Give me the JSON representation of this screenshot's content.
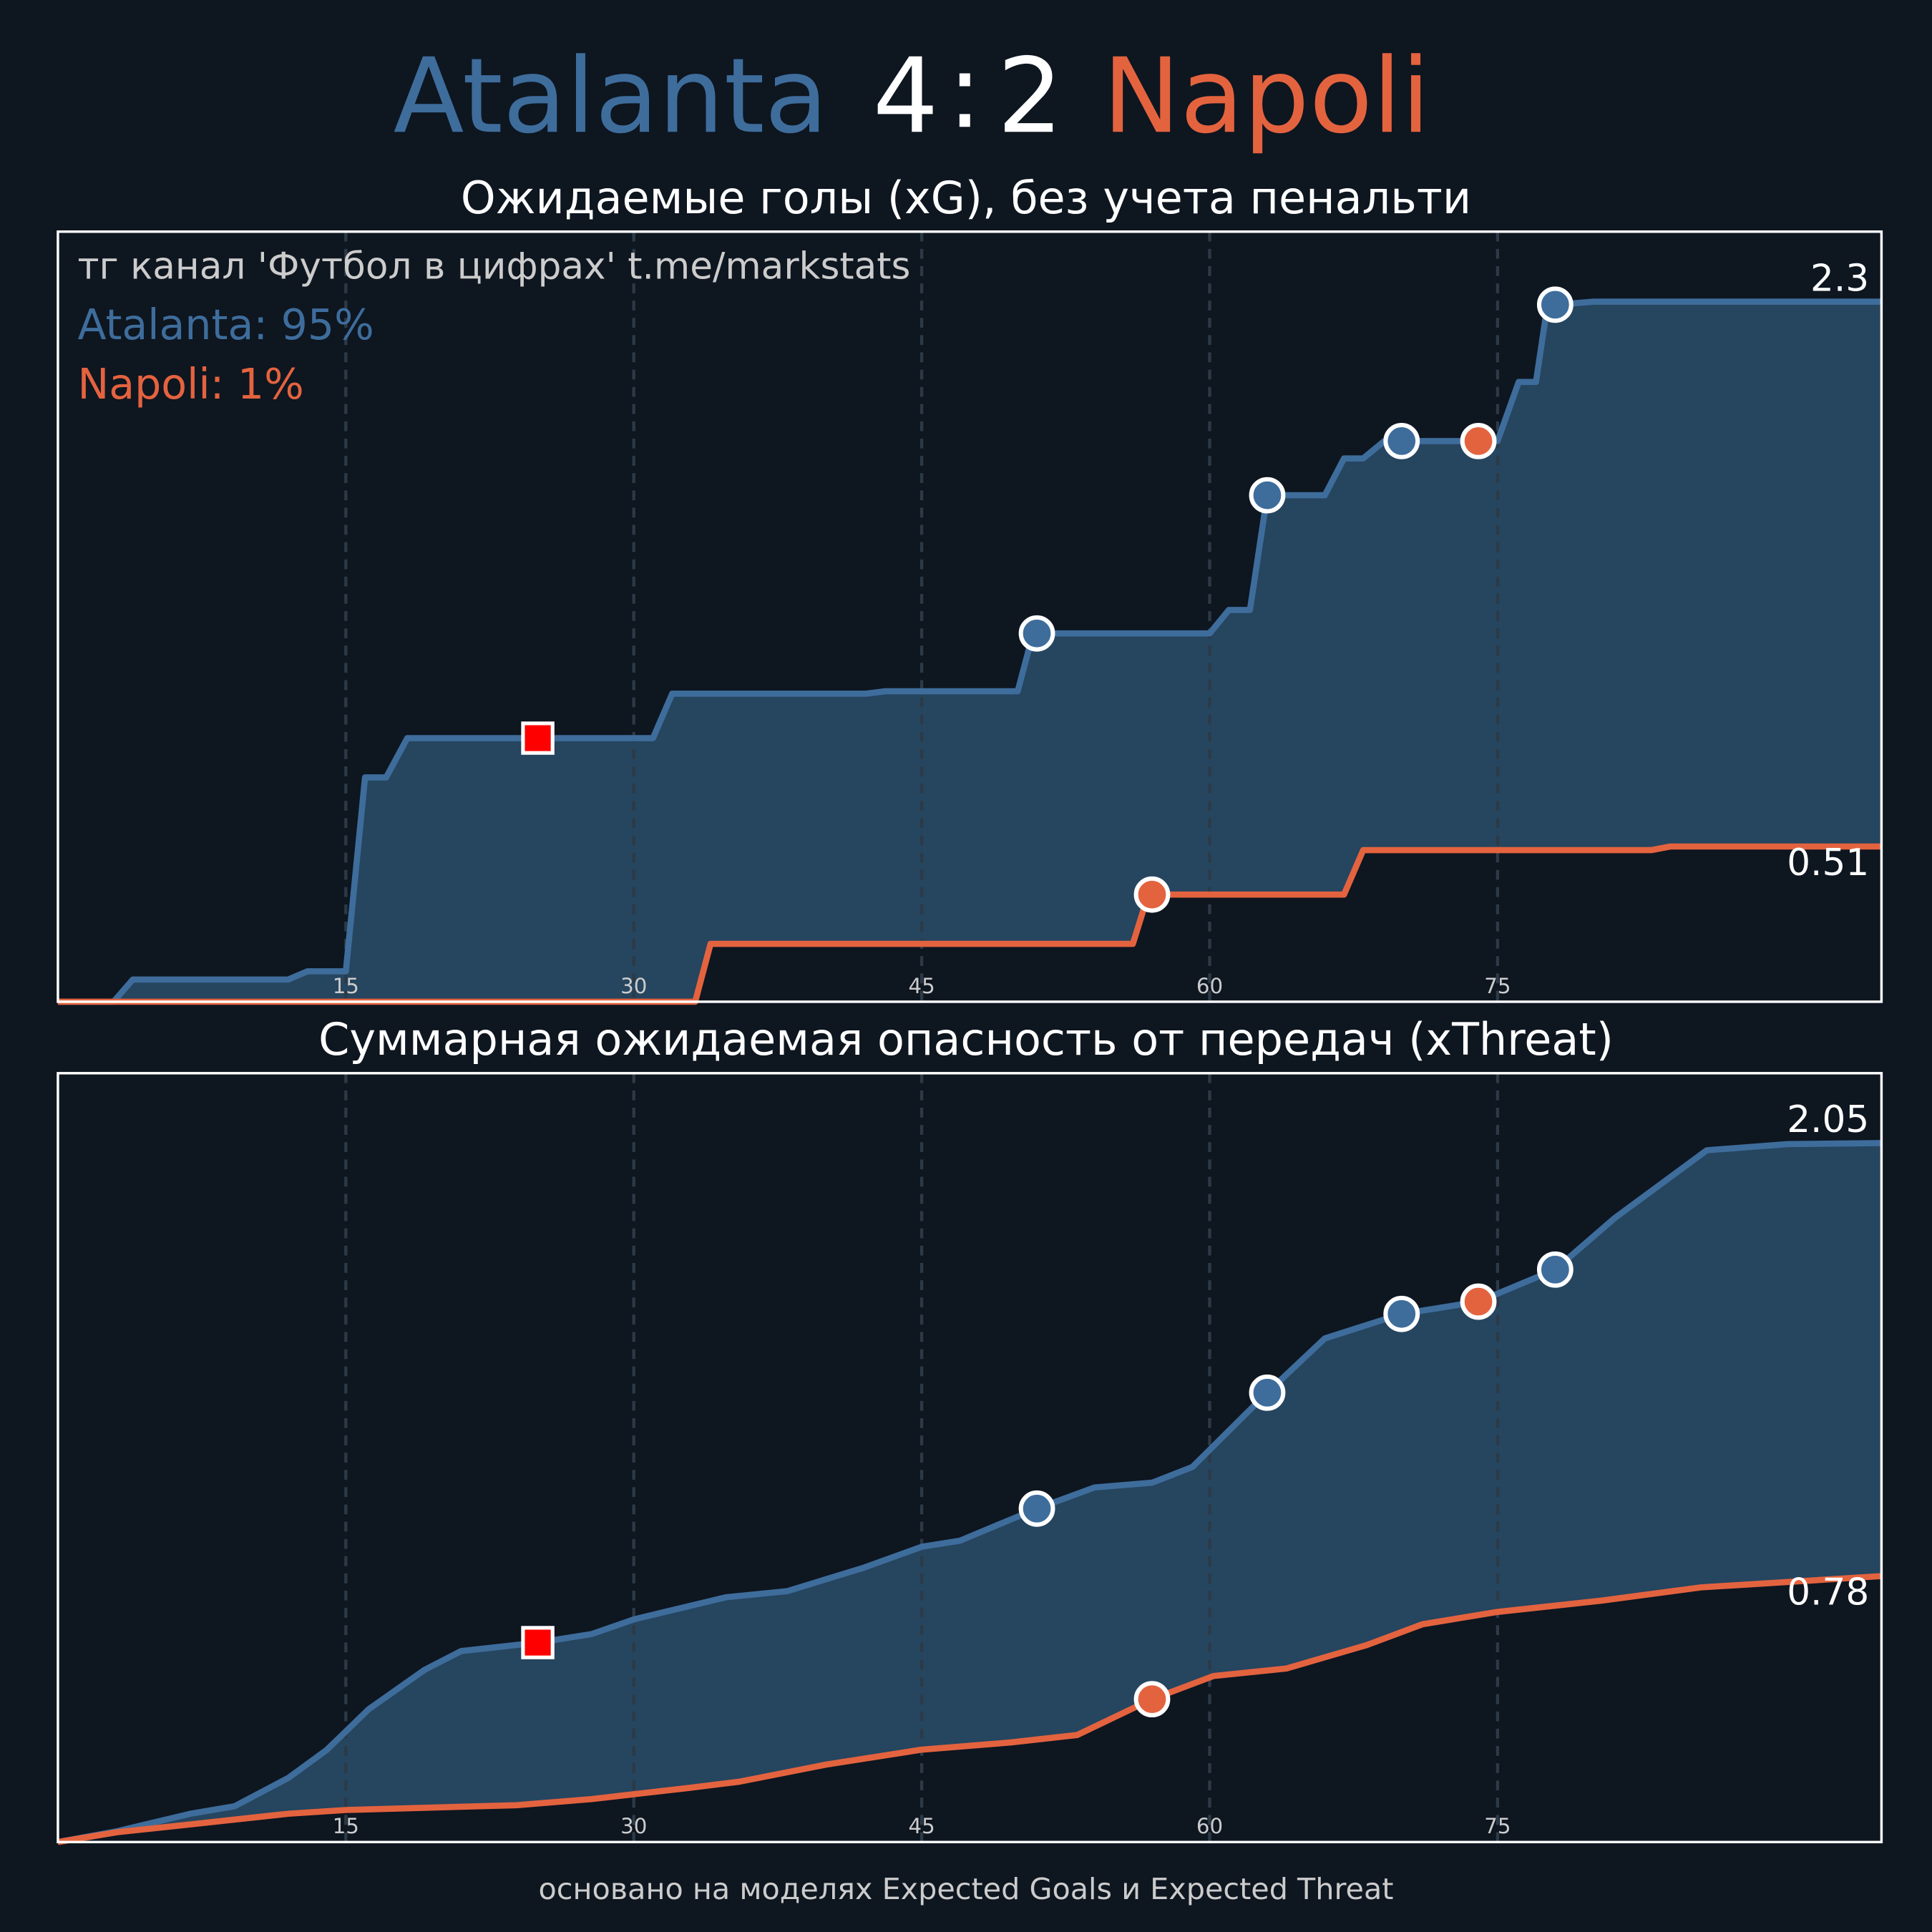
{
  "header": {
    "home": "Atalanta",
    "home_score": 4,
    "separator": ":",
    "away_score": 2,
    "away": "Napoli",
    "home_color": "#3e6d9c",
    "away_color": "#e4633f"
  },
  "footer": "основано на моделях Expected Goals и Expected Threat",
  "chart_data": [
    {
      "type": "line",
      "title": "Ожидаемые голы (xG), без учета пенальти",
      "annotations": [
        "тг канал 'Футбол в цифрах'  t.me/markstats",
        "Atalanta: 95%",
        "Napoli: 1%"
      ],
      "xlim": [
        0,
        95
      ],
      "ylim": [
        0,
        2.53
      ],
      "xticks": [
        15,
        30,
        45,
        60,
        75
      ],
      "grid": true,
      "fill_color": "#26455f",
      "series": [
        {
          "color": "#3e6d9c",
          "x": [
            0,
            2.9,
            3.9,
            12,
            13,
            15,
            16,
            17.1,
            18.2,
            31,
            32,
            42.1,
            43.1,
            50,
            50.8,
            60,
            61,
            62.1,
            63,
            66,
            67,
            68,
            69.1,
            74,
            75,
            76.1,
            77,
            77.6,
            78.1,
            80,
            95
          ],
          "values": [
            0,
            0,
            0.073,
            0.073,
            0.1,
            0.1,
            0.737,
            0.737,
            0.866,
            0.866,
            1.012,
            1.012,
            1.02,
            1.02,
            1.21,
            1.21,
            1.287,
            1.287,
            1.664,
            1.664,
            1.785,
            1.785,
            1.842,
            1.842,
            1.842,
            2.036,
            2.036,
            2.29,
            2.29,
            2.3,
            2.3
          ]
        },
        {
          "color": "#e4633f",
          "x": [
            0,
            33.2,
            34,
            56,
            56.8,
            67,
            68,
            83,
            84,
            95
          ],
          "values": [
            0,
            0,
            0.19,
            0.19,
            0.352,
            0.352,
            0.498,
            0.498,
            0.51,
            0.51
          ]
        }
      ],
      "markers": [
        {
          "x": 25,
          "series": 0,
          "shape": "square",
          "color": "#ff0000"
        },
        {
          "x": 51,
          "series": 0,
          "shape": "circle",
          "color": "#3e6d9c"
        },
        {
          "x": 57,
          "series": 1,
          "shape": "circle",
          "color": "#e4633f"
        },
        {
          "x": 63,
          "series": 0,
          "shape": "circle",
          "color": "#3e6d9c"
        },
        {
          "x": 70,
          "series": 0,
          "shape": "circle",
          "color": "#3e6d9c"
        },
        {
          "x": 74,
          "series": 0,
          "shape": "circle",
          "color": "#e4633f"
        },
        {
          "x": 78,
          "series": 0,
          "shape": "circle",
          "color": "#3e6d9c"
        }
      ]
    },
    {
      "type": "line",
      "title": "Суммарная ожидаемая опасность от передач (xThreat)",
      "xlim": [
        0,
        95
      ],
      "ylim": [
        0,
        2.255
      ],
      "xticks": [
        15,
        30,
        45,
        60,
        75
      ],
      "grid": true,
      "fill_color": "#26455f",
      "series": [
        {
          "color": "#3e6d9c",
          "x": [
            0,
            3.1,
            6.9,
            9.2,
            12,
            14,
            16.2,
            19.1,
            21,
            25,
            27.8,
            30,
            34.8,
            38,
            42,
            45,
            47,
            51,
            54,
            57,
            59.1,
            63,
            66,
            70,
            74,
            78,
            81.1,
            85.9,
            90.1,
            95
          ],
          "values": [
            0,
            0.032,
            0.083,
            0.105,
            0.188,
            0.27,
            0.39,
            0.505,
            0.56,
            0.585,
            0.61,
            0.653,
            0.718,
            0.736,
            0.805,
            0.866,
            0.884,
            0.978,
            1.04,
            1.054,
            1.1,
            1.318,
            1.477,
            1.549,
            1.585,
            1.679,
            1.83,
            2.029,
            2.047,
            2.05
          ]
        },
        {
          "color": "#e4633f",
          "x": [
            0,
            3.1,
            6.6,
            12,
            15,
            19.4,
            23.9,
            27.8,
            32.9,
            35.5,
            40,
            45,
            49.6,
            53.1,
            57,
            60.2,
            64,
            68.2,
            71.1,
            75,
            80.4,
            85.6,
            95
          ],
          "values": [
            0,
            0.029,
            0.05,
            0.083,
            0.094,
            0.101,
            0.108,
            0.126,
            0.159,
            0.177,
            0.227,
            0.271,
            0.292,
            0.314,
            0.419,
            0.487,
            0.509,
            0.578,
            0.639,
            0.675,
            0.708,
            0.747,
            0.78
          ]
        }
      ],
      "markers": [
        {
          "x": 25,
          "series": 0,
          "shape": "square",
          "color": "#ff0000"
        },
        {
          "x": 51,
          "series": 0,
          "shape": "circle",
          "color": "#3e6d9c"
        },
        {
          "x": 57,
          "series": 1,
          "shape": "circle",
          "color": "#e4633f"
        },
        {
          "x": 63,
          "series": 0,
          "shape": "circle",
          "color": "#3e6d9c"
        },
        {
          "x": 70,
          "series": 0,
          "shape": "circle",
          "color": "#3e6d9c"
        },
        {
          "x": 74,
          "series": 0,
          "shape": "circle",
          "color": "#e4633f"
        },
        {
          "x": 78,
          "series": 0,
          "shape": "circle",
          "color": "#3e6d9c"
        }
      ]
    }
  ]
}
